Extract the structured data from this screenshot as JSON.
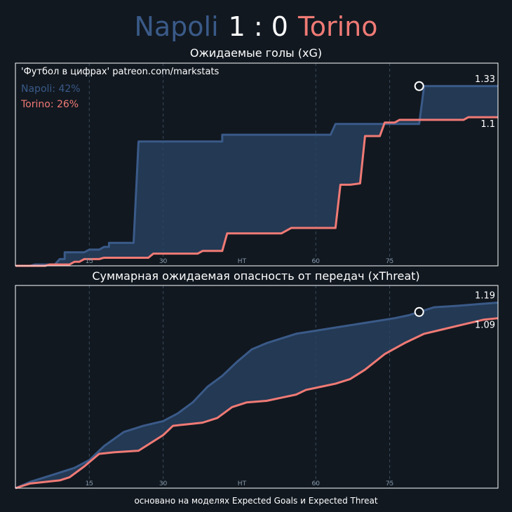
{
  "header": {
    "home": "Napoli",
    "score": "1 : 0",
    "away": "Torino"
  },
  "footer": "основано на моделях Expected Goals и Expected Threat",
  "colors": {
    "home": "#3a5a88",
    "away": "#f07a75",
    "home_fill": "#2a4466",
    "background": "#111820",
    "grid": "#3a4a5a"
  },
  "chart_data": [
    {
      "type": "line",
      "title": "Ожидаемые голы (xG)",
      "watermark": "'Футбол в цифрах' patreon.com/markstats",
      "legend": [
        {
          "text": "Napoli: 42%",
          "color": "#3a5a88"
        },
        {
          "text": "Torino: 26%",
          "color": "#f07a75"
        }
      ],
      "xlim": [
        0,
        98
      ],
      "ylim": [
        0,
        1.5
      ],
      "xticks": [
        {
          "x": 15,
          "label": "15"
        },
        {
          "x": 30,
          "label": "30"
        },
        {
          "x": 46,
          "label": "HT"
        },
        {
          "x": 61,
          "label": "60"
        },
        {
          "x": 76,
          "label": "75"
        }
      ],
      "grid_x": [
        15,
        30,
        61,
        76
      ],
      "goal_marker": {
        "x": 82,
        "y": 1.33
      },
      "series": [
        {
          "name": "Napoli",
          "final_label": "1.33",
          "points": [
            [
              0,
              0
            ],
            [
              3,
              0
            ],
            [
              4,
              0.01
            ],
            [
              8,
              0.01
            ],
            [
              9,
              0.05
            ],
            [
              10,
              0.05
            ],
            [
              10,
              0.1
            ],
            [
              14,
              0.1
            ],
            [
              15,
              0.12
            ],
            [
              17,
              0.12
            ],
            [
              18,
              0.14
            ],
            [
              19,
              0.14
            ],
            [
              19,
              0.17
            ],
            [
              24,
              0.17
            ],
            [
              25,
              0.92
            ],
            [
              42,
              0.92
            ],
            [
              42,
              0.97
            ],
            [
              64,
              0.97
            ],
            [
              65,
              1.05
            ],
            [
              82,
              1.05
            ],
            [
              83,
              1.33
            ],
            [
              98,
              1.33
            ]
          ]
        },
        {
          "name": "Torino",
          "final_label": "1.1",
          "points": [
            [
              0,
              0
            ],
            [
              6,
              0
            ],
            [
              7,
              0.01
            ],
            [
              11,
              0.01
            ],
            [
              12,
              0.03
            ],
            [
              13,
              0.03
            ],
            [
              14,
              0.05
            ],
            [
              17,
              0.05
            ],
            [
              18,
              0.06
            ],
            [
              27,
              0.06
            ],
            [
              28,
              0.09
            ],
            [
              37,
              0.09
            ],
            [
              38,
              0.11
            ],
            [
              42,
              0.11
            ],
            [
              43,
              0.24
            ],
            [
              54,
              0.24
            ],
            [
              55,
              0.26
            ],
            [
              56,
              0.28
            ],
            [
              65,
              0.28
            ],
            [
              66,
              0.6
            ],
            [
              68,
              0.6
            ],
            [
              70,
              0.61
            ],
            [
              71,
              0.96
            ],
            [
              74,
              0.96
            ],
            [
              75,
              1.06
            ],
            [
              77,
              1.06
            ],
            [
              78,
              1.08
            ],
            [
              91,
              1.08
            ],
            [
              92,
              1.1
            ],
            [
              98,
              1.1
            ]
          ]
        }
      ]
    },
    {
      "type": "line",
      "title": "Суммарная ожидаемая опасность от передач (xThreat)",
      "xlim": [
        0,
        98
      ],
      "ylim": [
        0,
        1.3
      ],
      "xticks": [
        {
          "x": 15,
          "label": "15"
        },
        {
          "x": 30,
          "label": "30"
        },
        {
          "x": 46,
          "label": "HT"
        },
        {
          "x": 61,
          "label": "60"
        },
        {
          "x": 76,
          "label": "75"
        }
      ],
      "grid_x": [
        15,
        30,
        61,
        76
      ],
      "goal_marker": {
        "x": 82,
        "y": 1.13
      },
      "series": [
        {
          "name": "Napoli",
          "final_label": "1.19",
          "points": [
            [
              0,
              0
            ],
            [
              3,
              0.04
            ],
            [
              6,
              0.07
            ],
            [
              9,
              0.1
            ],
            [
              12,
              0.13
            ],
            [
              15,
              0.18
            ],
            [
              18,
              0.27
            ],
            [
              22,
              0.36
            ],
            [
              26,
              0.4
            ],
            [
              30,
              0.43
            ],
            [
              33,
              0.48
            ],
            [
              36,
              0.55
            ],
            [
              39,
              0.65
            ],
            [
              42,
              0.72
            ],
            [
              45,
              0.81
            ],
            [
              48,
              0.89
            ],
            [
              51,
              0.93
            ],
            [
              54,
              0.96
            ],
            [
              57,
              0.99
            ],
            [
              61,
              1.01
            ],
            [
              65,
              1.03
            ],
            [
              69,
              1.05
            ],
            [
              73,
              1.07
            ],
            [
              77,
              1.09
            ],
            [
              80,
              1.11
            ],
            [
              82,
              1.13
            ],
            [
              85,
              1.16
            ],
            [
              90,
              1.17
            ],
            [
              94,
              1.18
            ],
            [
              98,
              1.19
            ]
          ]
        },
        {
          "name": "Torino",
          "final_label": "1.09",
          "points": [
            [
              0,
              0
            ],
            [
              3,
              0.03
            ],
            [
              6,
              0.04
            ],
            [
              9,
              0.05
            ],
            [
              11,
              0.07
            ],
            [
              14,
              0.14
            ],
            [
              17,
              0.22
            ],
            [
              20,
              0.23
            ],
            [
              25,
              0.24
            ],
            [
              30,
              0.34
            ],
            [
              32,
              0.4
            ],
            [
              35,
              0.41
            ],
            [
              38,
              0.42
            ],
            [
              41,
              0.45
            ],
            [
              44,
              0.52
            ],
            [
              47,
              0.55
            ],
            [
              51,
              0.56
            ],
            [
              54,
              0.58
            ],
            [
              57,
              0.6
            ],
            [
              59,
              0.63
            ],
            [
              62,
              0.65
            ],
            [
              65,
              0.67
            ],
            [
              68,
              0.7
            ],
            [
              71,
              0.76
            ],
            [
              75,
              0.86
            ],
            [
              79,
              0.93
            ],
            [
              83,
              0.99
            ],
            [
              87,
              1.02
            ],
            [
              91,
              1.05
            ],
            [
              95,
              1.08
            ],
            [
              98,
              1.09
            ]
          ]
        }
      ]
    }
  ]
}
